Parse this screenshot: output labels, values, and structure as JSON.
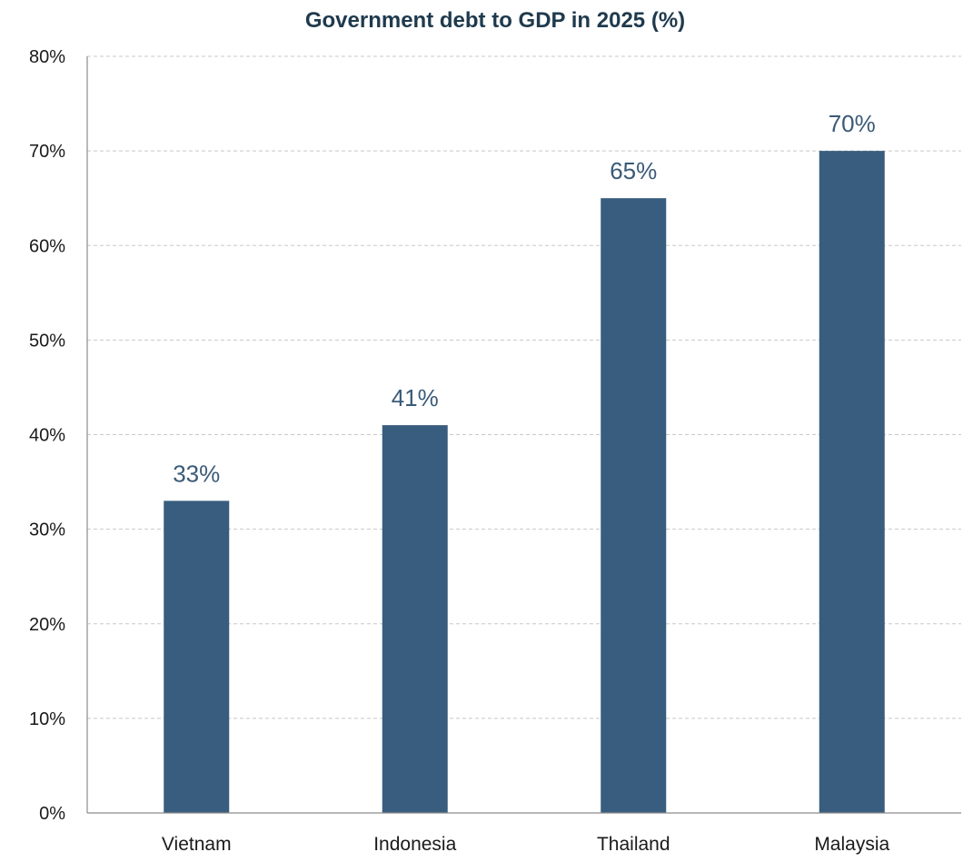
{
  "chart_data": {
    "type": "bar",
    "title": "Government debt to GDP in 2025 (%)",
    "xlabel": "",
    "ylabel": "",
    "categories": [
      "Vietnam",
      "Indonesia",
      "Thailand",
      "Malaysia"
    ],
    "values": [
      33,
      41,
      65,
      70
    ],
    "data_labels": [
      "33%",
      "41%",
      "65%",
      "70%"
    ],
    "ylim": [
      0,
      80
    ],
    "yticks": [
      0,
      10,
      20,
      30,
      40,
      50,
      60,
      70,
      80
    ],
    "ytick_labels": [
      "0%",
      "10%",
      "20%",
      "30%",
      "40%",
      "50%",
      "60%",
      "70%",
      "80%"
    ],
    "grid": true,
    "legend": "none",
    "bar_color": "#385d7e",
    "label_color": "#3a5a78"
  }
}
